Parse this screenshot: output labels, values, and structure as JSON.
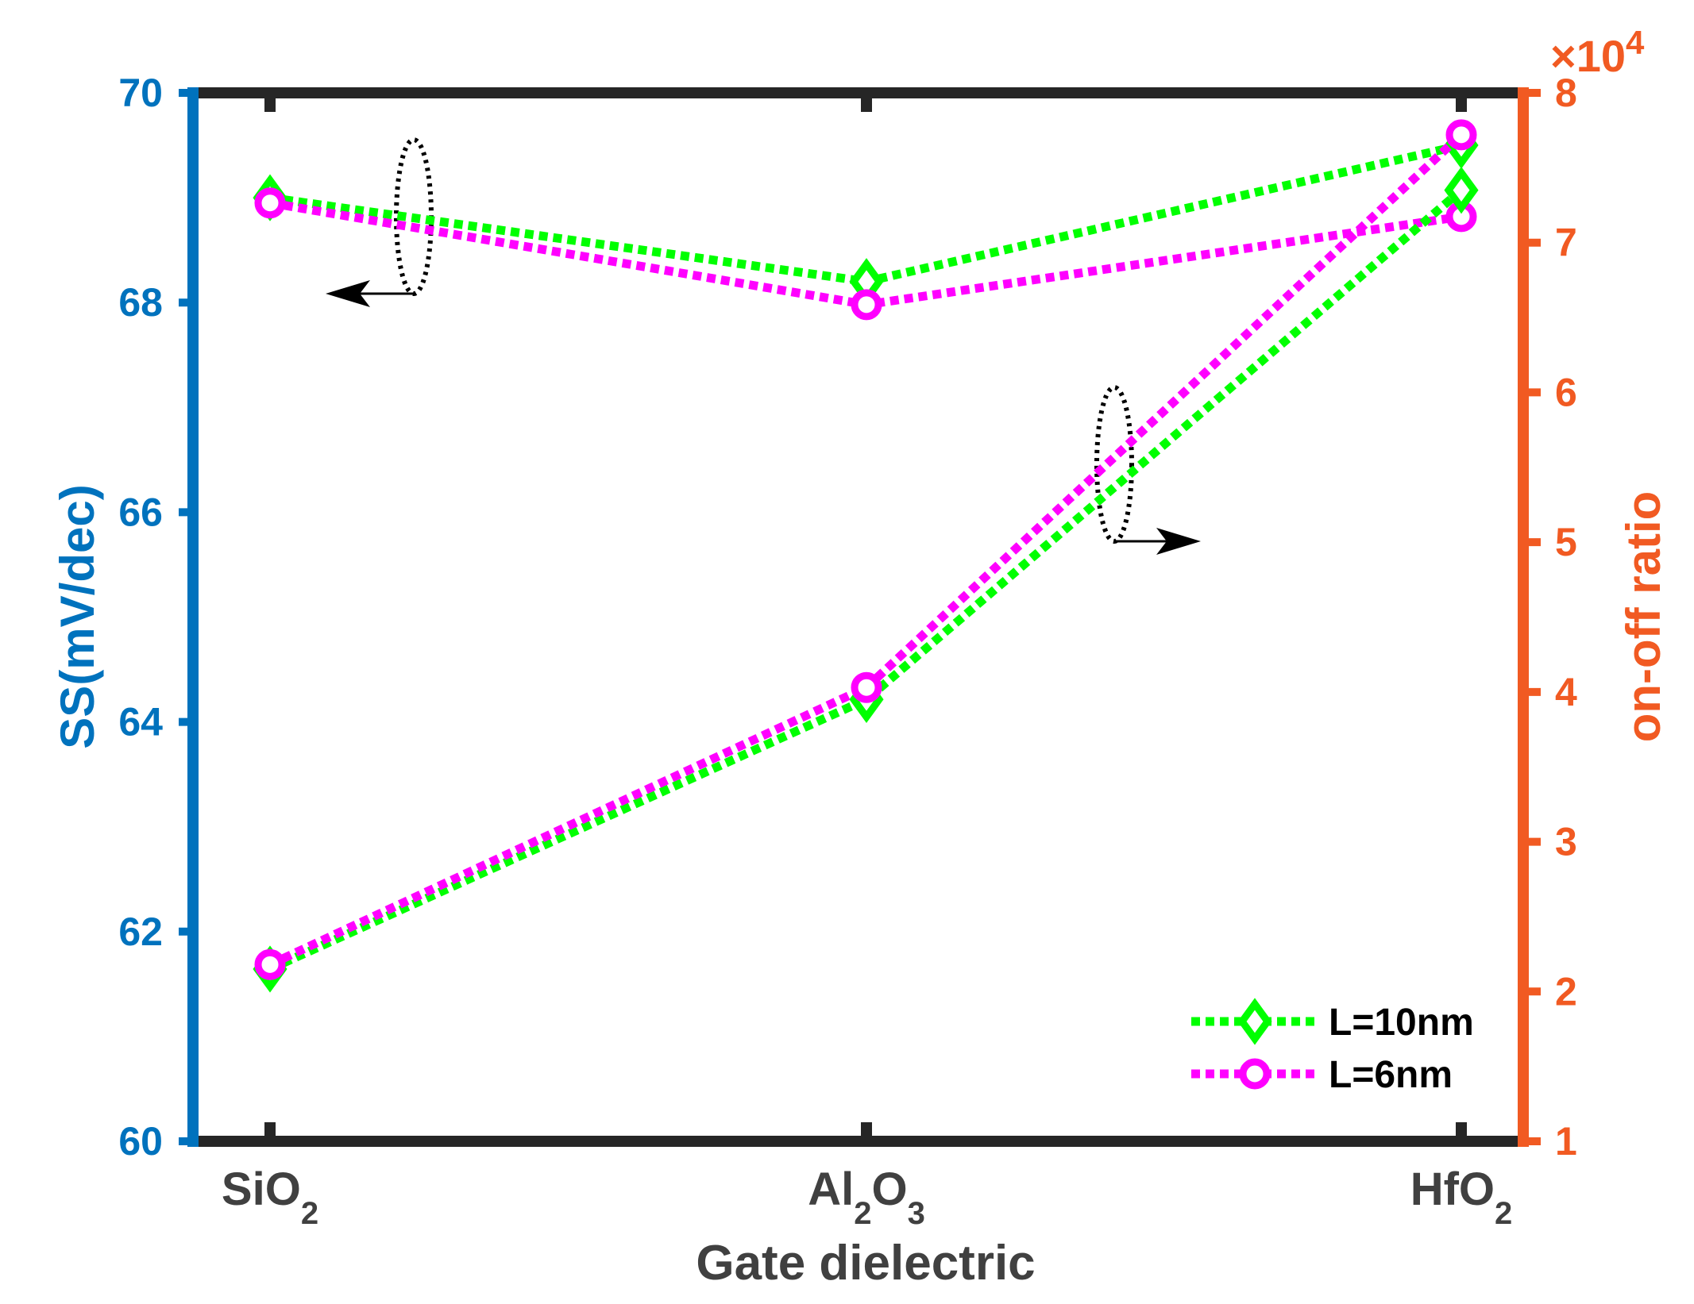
{
  "chart_data": {
    "type": "line",
    "categories": [
      "SiO2",
      "Al2O3",
      "HfO2"
    ],
    "category_labels": [
      {
        "base": "SiO",
        "sub": "2",
        "base2": "",
        "sub2": ""
      },
      {
        "base": "Al",
        "sub": "2",
        "base2": "O",
        "sub2": "3"
      },
      {
        "base": "HfO",
        "sub": "2",
        "base2": "",
        "sub2": ""
      }
    ],
    "xlabel": "Gate dielectric",
    "ylabel_left": "SS(mV/dec)",
    "ylabel_right": "on-off ratio",
    "ylim_left": [
      60,
      70
    ],
    "yticks_left": [
      "60",
      "62",
      "64",
      "66",
      "68",
      "70"
    ],
    "ylim_right": [
      1,
      8
    ],
    "yticks_right": [
      "1",
      "2",
      "3",
      "4",
      "5",
      "6",
      "7",
      "8"
    ],
    "right_axis_multiplier": {
      "base": "×10",
      "exponent": "4"
    },
    "series": [
      {
        "name": "L=10nm",
        "axis": "left",
        "marker": "diamond",
        "color": "#00FF00",
        "values": [
          69.0,
          68.2,
          69.5
        ]
      },
      {
        "name": "L=6nm",
        "axis": "left",
        "marker": "circle",
        "color": "#FF00FF",
        "values": [
          68.95,
          67.98,
          68.82
        ]
      },
      {
        "name": "L=10nm",
        "axis": "right",
        "marker": "diamond",
        "color": "#00FF00",
        "values": [
          2.15,
          3.95,
          7.35
        ]
      },
      {
        "name": "L=6nm",
        "axis": "right",
        "marker": "circle",
        "color": "#FF00FF",
        "values": [
          2.18,
          4.03,
          7.72
        ]
      }
    ],
    "legend": {
      "position": "bottom-right",
      "entries": [
        {
          "label": "L=10nm",
          "marker": "diamond",
          "color": "#00FF00"
        },
        {
          "label": "L=6nm",
          "marker": "circle",
          "color": "#FF00FF"
        }
      ]
    },
    "colors": {
      "left_axis": "#0072BD",
      "right_axis": "#F15A22",
      "frame": "#262626"
    }
  }
}
